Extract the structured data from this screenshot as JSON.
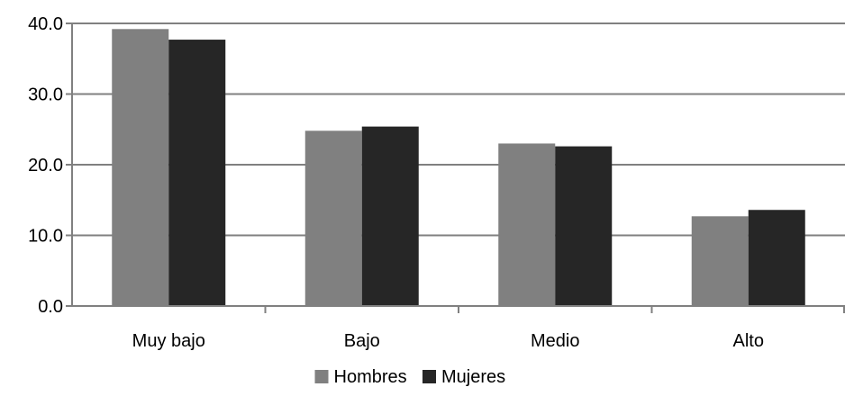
{
  "chart_data": {
    "type": "bar",
    "categories": [
      "Muy bajo",
      "Bajo",
      "Medio",
      "Alto"
    ],
    "series": [
      {
        "name": "Hombres",
        "values": [
          39.2,
          24.8,
          23.0,
          12.7
        ],
        "color": "#808080"
      },
      {
        "name": "Mujeres",
        "values": [
          37.7,
          25.4,
          22.6,
          13.6
        ],
        "color": "#262626"
      }
    ],
    "y_ticks": [
      "0.0",
      "10.0",
      "20.0",
      "30.0",
      "40.0"
    ],
    "ylim": [
      0,
      40
    ],
    "grid": true,
    "gridline_color": "#808080",
    "legend_position": "bottom"
  }
}
